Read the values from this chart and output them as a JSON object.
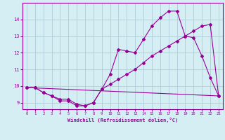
{
  "background_color": "#d4eef4",
  "grid_color": "#b0cdd8",
  "line_color": "#990099",
  "marker_color": "#990099",
  "xlabel": "Windchill (Refroidissement éolien,°C)",
  "ylim": [
    8.6,
    15.0
  ],
  "xlim": [
    -0.5,
    23.5
  ],
  "yticks": [
    9,
    10,
    11,
    12,
    13,
    14
  ],
  "xticks": [
    0,
    1,
    2,
    3,
    4,
    5,
    6,
    7,
    8,
    9,
    10,
    11,
    12,
    13,
    14,
    15,
    16,
    17,
    18,
    19,
    20,
    21,
    22,
    23
  ],
  "line1_x": [
    0,
    1,
    2,
    3,
    4,
    5,
    6,
    7,
    8,
    9,
    10,
    11,
    12,
    13,
    14,
    15,
    16,
    17,
    18,
    19,
    20,
    21,
    22,
    23
  ],
  "line1_y": [
    9.9,
    9.9,
    9.6,
    9.4,
    9.1,
    9.1,
    8.8,
    8.8,
    9.0,
    9.8,
    10.7,
    12.2,
    12.1,
    12.0,
    12.8,
    13.6,
    14.1,
    14.5,
    14.5,
    13.0,
    12.9,
    11.8,
    10.5,
    9.4
  ],
  "line2_x": [
    0,
    1,
    2,
    3,
    4,
    5,
    6,
    7,
    8,
    9,
    10,
    11,
    12,
    13,
    14,
    15,
    16,
    17,
    18,
    19,
    20,
    21,
    22,
    23
  ],
  "line2_y": [
    9.9,
    9.9,
    9.6,
    9.4,
    9.2,
    9.2,
    8.9,
    8.8,
    9.0,
    9.8,
    10.1,
    10.4,
    10.7,
    11.0,
    11.4,
    11.8,
    12.1,
    12.4,
    12.7,
    13.0,
    13.3,
    13.6,
    13.7,
    9.4
  ],
  "line3_x": [
    0,
    23
  ],
  "line3_y": [
    9.9,
    9.4
  ]
}
